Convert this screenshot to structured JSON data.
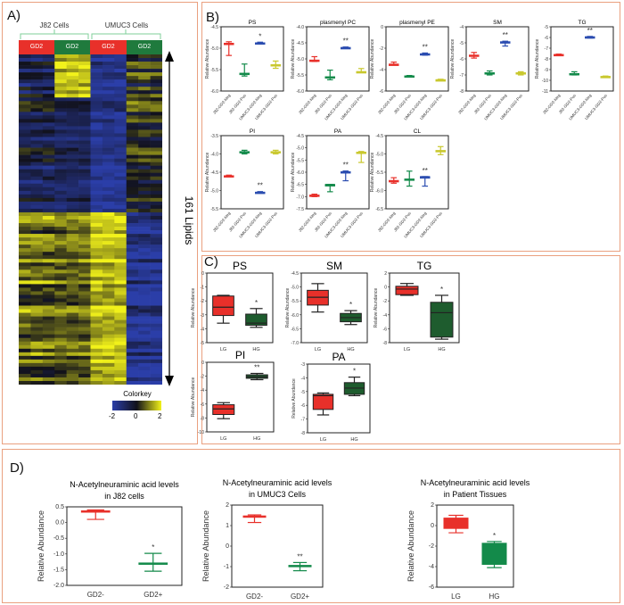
{
  "panels": {
    "a": "A)",
    "b": "B)",
    "c": "C)",
    "d": "D)"
  },
  "heatmap": {
    "groups": [
      "J82 Cells",
      "UMUC3 Cells"
    ],
    "conditions": [
      "GD2 Negative",
      "GD2 Positive",
      "GD2 Negative",
      "GD2 Positive"
    ],
    "condition_colors": [
      "#e8302a",
      "#1f7a3d",
      "#e8302a",
      "#1f7a3d"
    ],
    "row_label": "161 Lipids",
    "colorkey": {
      "title": "Colorkey",
      "ticks": [
        "-2",
        "0",
        "2"
      ],
      "colors": [
        "#2b3ea8",
        "#11111a",
        "#f2f21a"
      ]
    }
  },
  "colors": {
    "red": "#e8302a",
    "green": "#138a4a",
    "blue": "#2b4db0",
    "olive": "#c9c82e",
    "darkgreen": "#1e5c2e"
  },
  "chart_data": [
    {
      "id": "b-ps",
      "type": "box",
      "title": "PS",
      "ylabel": "Relative Abundance",
      "ylim": [
        -6,
        -4.5
      ],
      "yticks": [
        -4.5,
        -5.0,
        -5.5,
        -6.0
      ],
      "tickfmt": 1,
      "categories": [
        "J82-GD2-Neg",
        "J82-GD2-Pos",
        "UMUC3-GD2-Neg",
        "UMUC3-GD2-Pos"
      ],
      "colors": [
        "red",
        "green",
        "blue",
        "olive"
      ],
      "stats": [
        [
          -5.17,
          -4.92,
          -4.9,
          -4.88,
          -4.85
        ],
        [
          -5.65,
          -5.62,
          -5.6,
          -5.58,
          -5.37
        ],
        [
          -4.9,
          -4.89,
          -4.88,
          -4.87,
          -4.86
        ],
        [
          -5.47,
          -5.42,
          -5.4,
          -5.38,
          -5.3
        ]
      ],
      "sig": [
        "",
        "",
        "*",
        ""
      ]
    },
    {
      "id": "b-ppc",
      "type": "box",
      "title": "plasmenyl PC",
      "ylabel": "Relative Abundance",
      "ylim": [
        -6,
        -4
      ],
      "yticks": [
        -4.0,
        -4.5,
        -5.0,
        -5.5,
        -6.0
      ],
      "tickfmt": 1,
      "categories": [
        "J82-GD2-Neg",
        "J82-GD2-Pos",
        "UMUC3-GD2-Neg",
        "UMUC3-GD2-Pos"
      ],
      "colors": [
        "red",
        "green",
        "blue",
        "olive"
      ],
      "stats": [
        [
          -5.08,
          -5.07,
          -5.05,
          -5.03,
          -4.93
        ],
        [
          -5.65,
          -5.6,
          -5.57,
          -5.55,
          -5.35
        ],
        [
          -4.67,
          -4.66,
          -4.65,
          -4.64,
          -4.63
        ],
        [
          -5.42,
          -5.41,
          -5.4,
          -5.39,
          -5.3
        ]
      ],
      "sig": [
        "",
        "",
        "**",
        ""
      ]
    },
    {
      "id": "b-ppe",
      "type": "box",
      "title": "plasmenyl PE",
      "ylabel": "Relative Abundance",
      "ylim": [
        -6,
        0
      ],
      "yticks": [
        0,
        -2,
        -4,
        -6
      ],
      "tickfmt": 0,
      "categories": [
        "J82-GD2-Neg",
        "J82-GD2-Pos",
        "UMUC3-GD2-Neg",
        "UMUC3-GD2-Pos"
      ],
      "colors": [
        "red",
        "green",
        "blue",
        "olive"
      ],
      "stats": [
        [
          -3.55,
          -3.53,
          -3.5,
          -3.47,
          -3.3
        ],
        [
          -4.65,
          -4.63,
          -4.6,
          -4.57,
          -4.55
        ],
        [
          -2.65,
          -2.6,
          -2.55,
          -2.5,
          -2.45
        ],
        [
          -5.0,
          -4.97,
          -4.95,
          -4.93,
          -4.9
        ]
      ],
      "sig": [
        "",
        "",
        "**",
        ""
      ]
    },
    {
      "id": "b-sm",
      "type": "box",
      "title": "SM",
      "ylabel": "Relative Abundance",
      "ylim": [
        -8,
        -4
      ],
      "yticks": [
        -4,
        -5,
        -6,
        -7,
        -8
      ],
      "tickfmt": 0,
      "categories": [
        "J82-GD2-Neg",
        "J82-GD2-Pos",
        "UMUC3-GD2-Neg",
        "UMUC3-GD2-Pos"
      ],
      "colors": [
        "red",
        "green",
        "blue",
        "olive"
      ],
      "stats": [
        [
          -5.95,
          -5.85,
          -5.8,
          -5.75,
          -5.6
        ],
        [
          -7.0,
          -6.95,
          -6.9,
          -6.85,
          -6.75
        ],
        [
          -5.2,
          -5.0,
          -4.95,
          -4.92,
          -4.9
        ],
        [
          -7.0,
          -6.95,
          -6.9,
          -6.85,
          -6.8
        ]
      ],
      "sig": [
        "",
        "",
        "**",
        ""
      ]
    },
    {
      "id": "b-tg",
      "type": "box",
      "title": "TG",
      "ylabel": "Relative Abundance",
      "ylim": [
        -11,
        -5
      ],
      "yticks": [
        -5,
        -6,
        -7,
        -8,
        -9,
        -10,
        -11
      ],
      "tickfmt": 0,
      "categories": [
        "J82-GD2-Neg",
        "J82-GD2-Pos",
        "UMUC3-GD2-Neg",
        "UMUC3-GD2-Pos"
      ],
      "colors": [
        "red",
        "green",
        "blue",
        "olive"
      ],
      "stats": [
        [
          -7.7,
          -7.65,
          -7.6,
          -7.57,
          -7.55
        ],
        [
          -9.5,
          -9.45,
          -9.4,
          -9.35,
          -9.2
        ],
        [
          -6.05,
          -6.0,
          -5.95,
          -5.92,
          -5.9
        ],
        [
          -9.7,
          -9.68,
          -9.65,
          -9.62,
          -9.6
        ]
      ],
      "sig": [
        "",
        "",
        "**",
        ""
      ]
    },
    {
      "id": "b-pi",
      "type": "box",
      "title": "PI",
      "ylabel": "Relative Abundance",
      "ylim": [
        -5.5,
        -3.5
      ],
      "yticks": [
        -3.5,
        -4.0,
        -4.5,
        -5.0,
        -5.5
      ],
      "tickfmt": 1,
      "categories": [
        "J82-GD2-Neg",
        "J82-GD2-Pos",
        "UMUC3-GD2-Neg",
        "UMUC3-GD2-Pos"
      ],
      "colors": [
        "red",
        "green",
        "blue",
        "olive"
      ],
      "stats": [
        [
          -4.62,
          -4.61,
          -4.6,
          -4.59,
          -4.58
        ],
        [
          -4.0,
          -3.97,
          -3.95,
          -3.93,
          -3.9
        ],
        [
          -5.07,
          -5.06,
          -5.05,
          -5.04,
          -5.03
        ],
        [
          -4.0,
          -3.97,
          -3.95,
          -3.93,
          -3.9
        ]
      ],
      "sig": [
        "",
        "",
        "**",
        ""
      ]
    },
    {
      "id": "b-pa",
      "type": "box",
      "title": "PA",
      "ylabel": "Relative Abundance",
      "ylim": [
        -7.5,
        -4.5
      ],
      "yticks": [
        -4.5,
        -5.0,
        -5.5,
        -6.0,
        -6.5,
        -7.0,
        -7.5
      ],
      "tickfmt": 1,
      "categories": [
        "J82-GD2-Neg",
        "J82-GD2-Pos",
        "UMUC3-GD2-Neg",
        "UMUC3-GD2-Pos"
      ],
      "colors": [
        "red",
        "green",
        "blue",
        "olive"
      ],
      "stats": [
        [
          -7.0,
          -6.97,
          -6.95,
          -6.93,
          -6.9
        ],
        [
          -6.8,
          -6.52,
          -6.5,
          -6.5,
          -6.5
        ],
        [
          -6.35,
          -6.02,
          -6.0,
          -5.97,
          -5.95
        ],
        [
          -5.6,
          -5.22,
          -5.2,
          -5.17,
          -5.15
        ]
      ],
      "sig": [
        "",
        "",
        "**",
        ""
      ]
    },
    {
      "id": "b-cl",
      "type": "box",
      "title": "CL",
      "ylabel": "Relative Abundance",
      "ylim": [
        -6.5,
        -4.5
      ],
      "yticks": [
        -4.5,
        -5.0,
        -5.5,
        -6.0,
        -6.5
      ],
      "tickfmt": 1,
      "categories": [
        "J82-GD2-Neg",
        "J82-GD2-Pos",
        "UMUC3-GD2-Neg",
        "UMUC3-GD2-Pos"
      ],
      "colors": [
        "red",
        "green",
        "blue",
        "olive"
      ],
      "stats": [
        [
          -5.8,
          -5.77,
          -5.75,
          -5.72,
          -5.65
        ],
        [
          -5.88,
          -5.72,
          -5.7,
          -5.68,
          -5.47
        ],
        [
          -5.88,
          -5.63,
          -5.62,
          -5.62,
          -5.62
        ],
        [
          -5.02,
          -4.95,
          -4.92,
          -4.9,
          -4.8
        ]
      ],
      "sig": [
        "",
        "",
        "**",
        ""
      ]
    },
    {
      "id": "c-ps",
      "type": "box",
      "title": "PS",
      "ylabel": "Relative Abundance",
      "ylim": [
        -5,
        0
      ],
      "yticks": [
        0,
        -1,
        -2,
        -3,
        -4,
        -5
      ],
      "tickfmt": 0,
      "categories": [
        "LG",
        "HG"
      ],
      "colors": [
        "red",
        "darkgreen"
      ],
      "stats": [
        [
          -3.6,
          -3.05,
          -2.45,
          -1.65,
          -1.6
        ],
        [
          -3.9,
          -3.75,
          -3.6,
          -2.95,
          -2.55
        ]
      ],
      "sig": [
        "",
        "*"
      ]
    },
    {
      "id": "c-sm",
      "type": "box",
      "title": "SM",
      "ylabel": "Relative Abundance",
      "ylim": [
        -7,
        -4.5
      ],
      "yticks": [
        -4.5,
        -5.0,
        -5.5,
        -6.0,
        -6.5,
        -7.0
      ],
      "tickfmt": 1,
      "categories": [
        "LG",
        "HG"
      ],
      "colors": [
        "red",
        "darkgreen"
      ],
      "stats": [
        [
          -5.9,
          -5.65,
          -5.37,
          -5.12,
          -4.88
        ],
        [
          -6.35,
          -6.25,
          -6.1,
          -5.95,
          -5.85
        ]
      ],
      "sig": [
        "",
        "*"
      ]
    },
    {
      "id": "c-tg",
      "type": "box",
      "title": "TG",
      "ylabel": "Relative Abundance",
      "ylim": [
        -8,
        2
      ],
      "yticks": [
        2,
        0,
        -2,
        -4,
        -6,
        -8
      ],
      "tickfmt": 0,
      "categories": [
        "LG",
        "HG"
      ],
      "colors": [
        "red",
        "darkgreen"
      ],
      "stats": [
        [
          -1.2,
          -1.1,
          -0.3,
          0.1,
          0.5
        ],
        [
          -7.5,
          -7.2,
          -3.7,
          -2.2,
          -1.2
        ]
      ],
      "sig": [
        "",
        "*"
      ]
    },
    {
      "id": "c-pi",
      "type": "box",
      "title": "PI",
      "ylabel": "Relative Abundance",
      "ylim": [
        -10,
        0
      ],
      "yticks": [
        0,
        -2,
        -4,
        -6,
        -8,
        -10
      ],
      "tickfmt": 0,
      "categories": [
        "LG",
        "HG"
      ],
      "colors": [
        "red",
        "darkgreen"
      ],
      "stats": [
        [
          -8.1,
          -7.5,
          -6.7,
          -6.1,
          -5.8
        ],
        [
          -2.5,
          -2.3,
          -2.1,
          -1.8,
          -1.6
        ]
      ],
      "sig": [
        "",
        "**"
      ]
    },
    {
      "id": "c-pa",
      "type": "box",
      "title": "PA",
      "ylabel": "Relative Abundance",
      "ylim": [
        -8,
        -3
      ],
      "yticks": [
        -3,
        -4,
        -5,
        -6,
        -7,
        -8
      ],
      "tickfmt": 0,
      "categories": [
        "LG",
        "HG"
      ],
      "colors": [
        "red",
        "darkgreen"
      ],
      "stats": [
        [
          -6.7,
          -6.3,
          -5.3,
          -5.2,
          -5.1
        ],
        [
          -5.3,
          -5.2,
          -4.75,
          -4.35,
          -3.95
        ]
      ],
      "sig": [
        "",
        "*"
      ]
    },
    {
      "id": "d-j82",
      "type": "box",
      "title": "N-Acetylneuraminic acid levels",
      "subtitle": "in J82 cells",
      "ylabel": "Relative Abundance",
      "ylim": [
        -2,
        0.5
      ],
      "yticks": [
        0.5,
        0.0,
        -0.5,
        -1.0,
        -1.5,
        -2.0
      ],
      "tickfmt": 1,
      "categories": [
        "GD2-",
        "GD2+"
      ],
      "colors": [
        "red",
        "green"
      ],
      "stats": [
        [
          0.1,
          0.34,
          0.36,
          0.38,
          0.4
        ],
        [
          -1.55,
          -1.32,
          -1.3,
          -1.28,
          -0.98
        ]
      ],
      "sig": [
        "",
        "*"
      ]
    },
    {
      "id": "d-umuc3",
      "type": "box",
      "title": "N-Acetylneuraminic acid levels",
      "subtitle": "in UMUC3 Cells",
      "ylabel": "Relative Abundance",
      "ylim": [
        -2,
        2
      ],
      "yticks": [
        2,
        1,
        0,
        -1,
        -2
      ],
      "tickfmt": 0,
      "categories": [
        "GD2-",
        "GD2+"
      ],
      "colors": [
        "red",
        "green"
      ],
      "stats": [
        [
          1.15,
          1.42,
          1.45,
          1.48,
          1.52
        ],
        [
          -1.2,
          -1.0,
          -0.97,
          -0.93,
          -0.8
        ]
      ],
      "sig": [
        "",
        "**"
      ]
    },
    {
      "id": "d-patient",
      "type": "box",
      "title": "N-Acetylneuraminic acid levels",
      "subtitle": "in Patient Tissues",
      "ylabel": "Relative Abundance",
      "ylim": [
        -6,
        2
      ],
      "yticks": [
        2,
        0,
        -2,
        -4,
        -6
      ],
      "tickfmt": 0,
      "categories": [
        "LG",
        "HG"
      ],
      "colors": [
        "red",
        "green"
      ],
      "stats": [
        [
          -0.7,
          -0.3,
          0.2,
          0.75,
          1.0
        ],
        [
          -4.1,
          -3.8,
          -2.0,
          -1.7,
          -1.55
        ]
      ],
      "sig": [
        "",
        "*"
      ]
    }
  ]
}
